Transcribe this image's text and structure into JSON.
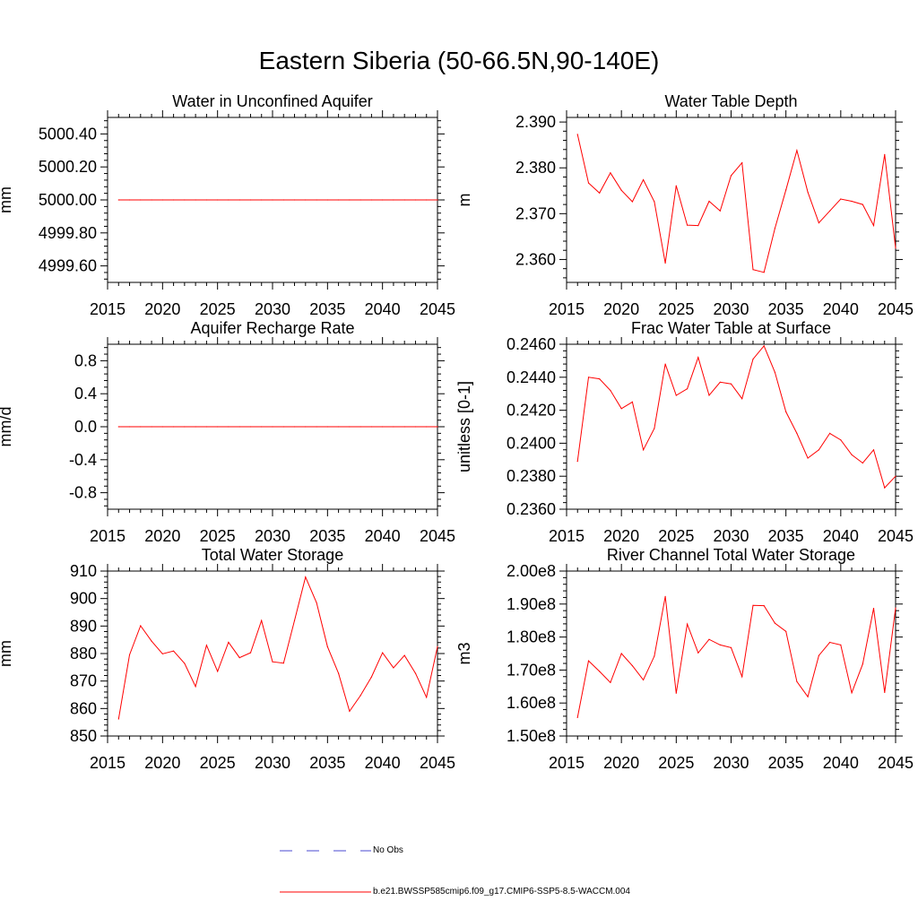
{
  "title": "Eastern Siberia (50-66.5N,90-140E)",
  "colors": {
    "series": "#ff0000",
    "obs": "#4a4ad0",
    "axis": "#000000"
  },
  "legend": {
    "obs_label": "No Obs",
    "model_label": "b.e21.BWSSP585cmip6.f09_g17.CMIP6-SSP5-8.5-WACCM.004"
  },
  "chart_data": [
    {
      "type": "line",
      "title": "Water in Unconfined Aquifer",
      "ylabel": "mm",
      "xlim": [
        2015,
        2045
      ],
      "ylim": [
        4999.5,
        5000.5
      ],
      "xticks": [
        2015,
        2020,
        2025,
        2030,
        2035,
        2040,
        2045
      ],
      "yticks": [
        4999.6,
        4999.8,
        5000.0,
        5000.2,
        5000.4
      ],
      "ytick_labels": [
        "4999.60",
        "4999.80",
        "5000.00",
        "5000.20",
        "5000.40"
      ],
      "x": [
        2016,
        2017,
        2018,
        2019,
        2020,
        2021,
        2022,
        2023,
        2024,
        2025,
        2026,
        2027,
        2028,
        2029,
        2030,
        2031,
        2032,
        2033,
        2034,
        2035,
        2036,
        2037,
        2038,
        2039,
        2040,
        2041,
        2042,
        2043,
        2044,
        2045
      ],
      "values": [
        5000.0,
        5000.0,
        5000.0,
        5000.0,
        5000.0,
        5000.0,
        5000.0,
        5000.0,
        5000.0,
        5000.0,
        5000.0,
        5000.0,
        5000.0,
        5000.0,
        5000.0,
        5000.0,
        5000.0,
        5000.0,
        5000.0,
        5000.0,
        5000.0,
        5000.0,
        5000.0,
        5000.0,
        5000.0,
        5000.0,
        5000.0,
        5000.0,
        5000.0,
        5000.0
      ]
    },
    {
      "type": "line",
      "title": "Water Table Depth",
      "ylabel": "m",
      "xlim": [
        2015,
        2045
      ],
      "ylim": [
        2.355,
        2.391
      ],
      "xticks": [
        2015,
        2020,
        2025,
        2030,
        2035,
        2040,
        2045
      ],
      "yticks": [
        2.36,
        2.37,
        2.38,
        2.39
      ],
      "ytick_labels": [
        "2.360",
        "2.370",
        "2.380",
        "2.390"
      ],
      "x": [
        2016,
        2017,
        2018,
        2019,
        2020,
        2021,
        2022,
        2023,
        2024,
        2025,
        2026,
        2027,
        2028,
        2029,
        2030,
        2031,
        2032,
        2033,
        2034,
        2035,
        2036,
        2037,
        2038,
        2039,
        2040,
        2041,
        2042,
        2043,
        2044,
        2045
      ],
      "values": [
        2.3873,
        2.3767,
        2.3745,
        2.3789,
        2.3751,
        2.3726,
        2.3774,
        2.3726,
        2.3592,
        2.3761,
        2.3675,
        2.3674,
        2.3727,
        2.3706,
        2.3783,
        2.3811,
        2.3578,
        2.3572,
        2.3668,
        2.3752,
        2.3838,
        2.3747,
        2.368,
        2.3706,
        2.3732,
        2.3727,
        2.372,
        2.3674,
        2.3829,
        2.3625
      ]
    },
    {
      "type": "line",
      "title": "Aquifer Recharge Rate",
      "ylabel": "mm/d",
      "xlim": [
        2015,
        2045
      ],
      "ylim": [
        -1.0,
        1.0
      ],
      "xticks": [
        2015,
        2020,
        2025,
        2030,
        2035,
        2040,
        2045
      ],
      "yticks": [
        -0.8,
        -0.4,
        0.0,
        0.4,
        0.8
      ],
      "ytick_labels": [
        "-0.8",
        "-0.4",
        "0.0",
        "0.4",
        "0.8"
      ],
      "x": [
        2016,
        2017,
        2018,
        2019,
        2020,
        2021,
        2022,
        2023,
        2024,
        2025,
        2026,
        2027,
        2028,
        2029,
        2030,
        2031,
        2032,
        2033,
        2034,
        2035,
        2036,
        2037,
        2038,
        2039,
        2040,
        2041,
        2042,
        2043,
        2044,
        2045
      ],
      "values": [
        0,
        0,
        0,
        0,
        0,
        0,
        0,
        0,
        0,
        0,
        0,
        0,
        0,
        0,
        0,
        0,
        0,
        0,
        0,
        0,
        0,
        0,
        0,
        0,
        0,
        0,
        0,
        0,
        0,
        0
      ]
    },
    {
      "type": "line",
      "title": "Frac Water Table at Surface",
      "ylabel": "unitless [0-1]",
      "xlim": [
        2015,
        2045
      ],
      "ylim": [
        0.236,
        0.246
      ],
      "xticks": [
        2015,
        2020,
        2025,
        2030,
        2035,
        2040,
        2045
      ],
      "yticks": [
        0.236,
        0.238,
        0.24,
        0.242,
        0.244,
        0.246
      ],
      "ytick_labels": [
        "0.2360",
        "0.2380",
        "0.2400",
        "0.2420",
        "0.2440",
        "0.2460"
      ],
      "x": [
        2016,
        2017,
        2018,
        2019,
        2020,
        2021,
        2022,
        2023,
        2024,
        2025,
        2026,
        2027,
        2028,
        2029,
        2030,
        2031,
        2032,
        2033,
        2034,
        2035,
        2036,
        2037,
        2038,
        2039,
        2040,
        2041,
        2042,
        2043,
        2044,
        2045
      ],
      "values": [
        0.2389,
        0.244,
        0.2439,
        0.2432,
        0.2421,
        0.2425,
        0.2396,
        0.2409,
        0.2448,
        0.2429,
        0.2433,
        0.2452,
        0.2429,
        0.2437,
        0.2436,
        0.2427,
        0.2451,
        0.2459,
        0.2443,
        0.2419,
        0.2406,
        0.2391,
        0.2396,
        0.2406,
        0.2402,
        0.2393,
        0.2388,
        0.2396,
        0.2373,
        0.238
      ]
    },
    {
      "type": "line",
      "title": "Total Water Storage",
      "ylabel": "mm",
      "xlim": [
        2015,
        2045
      ],
      "ylim": [
        850,
        910
      ],
      "xticks": [
        2015,
        2020,
        2025,
        2030,
        2035,
        2040,
        2045
      ],
      "yticks": [
        850,
        860,
        870,
        880,
        890,
        900,
        910
      ],
      "ytick_labels": [
        "850",
        "860",
        "870",
        "880",
        "890",
        "900",
        "910"
      ],
      "x": [
        2016,
        2017,
        2018,
        2019,
        2020,
        2021,
        2022,
        2023,
        2024,
        2025,
        2026,
        2027,
        2028,
        2029,
        2030,
        2031,
        2032,
        2033,
        2034,
        2035,
        2036,
        2037,
        2038,
        2039,
        2040,
        2041,
        2042,
        2043,
        2044,
        2045
      ],
      "values": [
        856.2,
        879.5,
        890.1,
        884.5,
        879.9,
        880.9,
        876.4,
        868.0,
        883.0,
        873.5,
        884.1,
        878.5,
        880.3,
        892.0,
        877.0,
        876.5,
        892.0,
        907.8,
        898.5,
        882.5,
        872.8,
        859.0,
        864.7,
        871.5,
        880.3,
        874.8,
        879.3,
        872.8,
        864.1,
        882.5
      ]
    },
    {
      "type": "line",
      "title": "River Channel Total Water Storage",
      "ylabel": "m3",
      "xlim": [
        2015,
        2045
      ],
      "ylim": [
        150000000,
        200000000
      ],
      "xticks": [
        2015,
        2020,
        2025,
        2030,
        2035,
        2040,
        2045
      ],
      "yticks": [
        150000000,
        160000000,
        170000000,
        180000000,
        190000000,
        200000000
      ],
      "ytick_labels": [
        "1.50e8",
        "1.60e8",
        "1.70e8",
        "1.80e8",
        "1.90e8",
        "2.00e8"
      ],
      "x": [
        2016,
        2017,
        2018,
        2019,
        2020,
        2021,
        2022,
        2023,
        2024,
        2025,
        2026,
        2027,
        2028,
        2029,
        2030,
        2031,
        2032,
        2033,
        2034,
        2035,
        2036,
        2037,
        2038,
        2039,
        2040,
        2041,
        2042,
        2043,
        2044,
        2045
      ],
      "values": [
        155600000,
        172800000,
        169600000,
        166200000,
        175000000,
        171300000,
        167000000,
        174200000,
        192300000,
        163000000,
        183900000,
        175200000,
        179300000,
        177600000,
        176800000,
        168000000,
        189600000,
        189500000,
        184200000,
        181700000,
        166500000,
        161900000,
        174400000,
        178400000,
        177600000,
        163100000,
        171800000,
        188700000,
        163200000,
        188800000
      ]
    }
  ]
}
